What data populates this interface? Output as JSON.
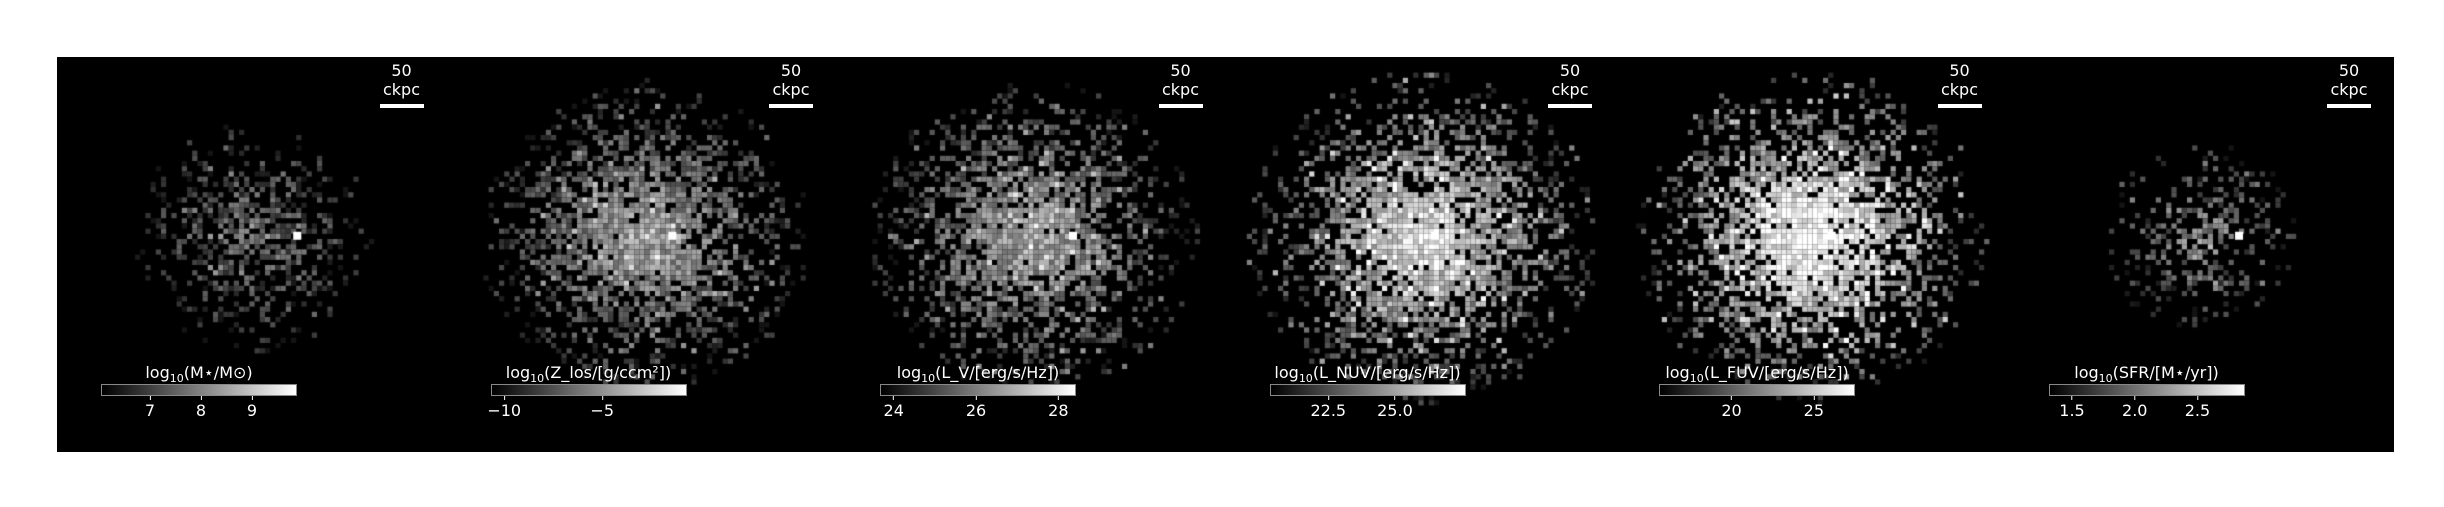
{
  "panels": [
    {
      "name": "stellar-mass",
      "scalebar_label": "50 ckpc",
      "colorbar": {
        "label_main": "log",
        "label_sub": "10",
        "label_rest": "(M⋆/M⊙)",
        "ticks": [
          {
            "v": "7",
            "f": 0.25
          },
          {
            "v": "8",
            "f": 0.51
          },
          {
            "v": "9",
            "f": 0.77
          }
        ]
      },
      "spread": 0.55,
      "density": 0.45,
      "brightness": 0.4,
      "core": [
        0.52,
        0.46
      ]
    },
    {
      "name": "metallicity",
      "scalebar_label": "50 ckpc",
      "colorbar": {
        "label_main": "log",
        "label_sub": "10",
        "label_rest": "(Z_los/[g/ccm²])",
        "ticks": [
          {
            "v": "−10",
            "f": 0.07
          },
          {
            "v": "−5",
            "f": 0.57
          }
        ]
      },
      "spread": 0.75,
      "density": 0.62,
      "brightness": 0.6,
      "core": [
        0.45,
        0.46
      ]
    },
    {
      "name": "v-band-luminosity",
      "scalebar_label": "50 ckpc",
      "colorbar": {
        "label_main": "log",
        "label_sub": "10",
        "label_rest": "(L_V/[erg/s/Hz])",
        "ticks": [
          {
            "v": "24",
            "f": 0.07
          },
          {
            "v": "26",
            "f": 0.49
          },
          {
            "v": "28",
            "f": 0.91
          }
        ]
      },
      "spread": 0.75,
      "density": 0.62,
      "brightness": 0.62,
      "core": [
        0.48,
        0.46
      ]
    },
    {
      "name": "nuv-luminosity",
      "scalebar_label": "50 ckpc",
      "colorbar": {
        "label_main": "log",
        "label_sub": "10",
        "label_rest": "(L_NUV/[erg/s/Hz])",
        "ticks": [
          {
            "v": "22.5",
            "f": 0.3
          },
          {
            "v": "25.0",
            "f": 0.64
          }
        ]
      },
      "spread": 0.8,
      "density": 0.62,
      "brightness": 0.82,
      "core": [
        0.4,
        0.46
      ]
    },
    {
      "name": "fuv-luminosity",
      "scalebar_label": "50 ckpc",
      "colorbar": {
        "label_main": "log",
        "label_sub": "10",
        "label_rest": "(L_FUV/[erg/s/Hz])",
        "ticks": [
          {
            "v": "20",
            "f": 0.37
          },
          {
            "v": "25",
            "f": 0.79
          }
        ]
      },
      "spread": 0.8,
      "density": 0.62,
      "brightness": 0.95,
      "core": [
        0.42,
        0.42
      ]
    },
    {
      "name": "star-formation-rate",
      "scalebar_label": "50 ckpc",
      "colorbar": {
        "label_main": "log",
        "label_sub": "10",
        "label_rest": "(SFR/[M⋆/yr])",
        "ticks": [
          {
            "v": "1.5",
            "f": 0.12
          },
          {
            "v": "2.0",
            "f": 0.44
          },
          {
            "v": "2.5",
            "f": 0.76
          }
        ]
      },
      "spread": 0.45,
      "density": 0.35,
      "brightness": 0.5,
      "core": [
        0.52,
        0.46
      ]
    }
  ]
}
